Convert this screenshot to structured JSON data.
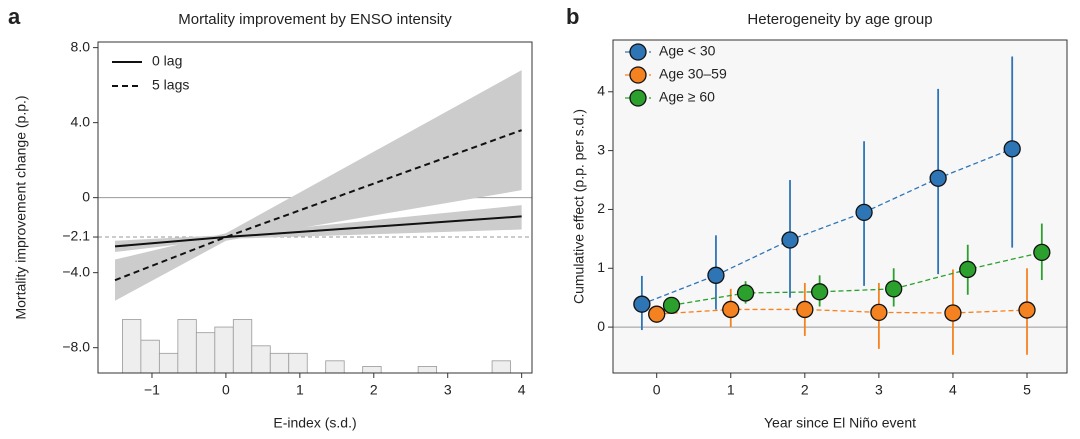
{
  "chart_data": [
    {
      "type": "line",
      "panel": "a",
      "title": "Mortality improvement by ENSO intensity",
      "x_label": "E-index (s.d.)",
      "y_label": "Mortality improvement change (p.p.)",
      "xlim": [
        -1.73,
        4.14
      ],
      "ylim": [
        -9.35,
        8.3
      ],
      "xticks": [
        {
          "value": -1,
          "label": "−1"
        },
        0,
        1,
        2,
        3,
        4
      ],
      "yticks": [
        {
          "value": 8,
          "label": "8.0"
        },
        {
          "value": 4,
          "label": "4.0"
        },
        0,
        {
          "value": -2.1,
          "label": "−2.1"
        },
        {
          "value": -4,
          "label": "−4.0"
        },
        {
          "value": -8,
          "label": "−8.0"
        }
      ],
      "hlines": [
        {
          "value": 0,
          "linestyle": "solid"
        },
        {
          "value": -2.1,
          "linestyle": "dashed"
        }
      ],
      "x": [
        -1.5,
        0,
        4
      ],
      "series": [
        {
          "name": "0 lag",
          "color": "#111111",
          "linestyle": "solid",
          "values": [
            -2.6,
            -2.1,
            -1.0
          ],
          "lower": [
            -2.9,
            -2.2,
            -1.7
          ],
          "upper": [
            -2.3,
            -2.0,
            -0.4
          ]
        },
        {
          "name": "5 lags",
          "color": "#111111",
          "linestyle": "dashed",
          "values": [
            -4.4,
            -2.1,
            3.6
          ],
          "lower": [
            -5.5,
            -2.3,
            0.4
          ],
          "upper": [
            -3.3,
            -1.9,
            6.8
          ]
        }
      ],
      "band_color": "#cccccc",
      "histogram": {
        "color": "#eeeeee",
        "edge": "#999999",
        "bins": [
          -1.4,
          -1.15,
          -0.9,
          -0.65,
          -0.4,
          -0.15,
          0.1,
          0.35,
          0.6,
          0.85,
          1.1,
          1.35,
          1.6,
          1.85,
          2.1,
          2.35,
          2.6,
          2.85,
          3.1,
          3.35,
          3.6,
          3.85
        ],
        "values": [
          -6.5,
          -7.6,
          -8.3,
          -6.5,
          -7.2,
          -6.9,
          -6.5,
          -7.9,
          -8.3,
          -8.3,
          null,
          -8.7,
          null,
          -9.0,
          null,
          null,
          -9.0,
          null,
          null,
          null,
          -8.7
        ]
      },
      "legend": "upper left",
      "background": "#ffffff"
    },
    {
      "type": "scatter",
      "panel": "b",
      "title": "Heterogeneity by age group",
      "x_label": "Year since El Niño event",
      "y_label": "Cumulative effect (p.p. per s.d.)",
      "xlim": [
        -0.59,
        5.54
      ],
      "ylim": [
        -0.78,
        4.88
      ],
      "xticks": [
        0,
        1,
        2,
        3,
        4,
        5
      ],
      "yticks": [
        0,
        1,
        2,
        3,
        4
      ],
      "hlines": [
        {
          "value": 0,
          "linestyle": "solid"
        }
      ],
      "series": [
        {
          "name": "Age < 30",
          "color": "#2e75b6",
          "x": [
            -0.2,
            0.8,
            1.8,
            2.8,
            3.8,
            4.8
          ],
          "values": [
            0.39,
            0.88,
            1.48,
            1.95,
            2.53,
            3.03
          ],
          "lower": [
            -0.05,
            0.3,
            0.5,
            0.7,
            0.9,
            1.35
          ],
          "upper": [
            0.87,
            1.56,
            2.5,
            3.16,
            4.05,
            4.6
          ]
        },
        {
          "name": "Age 30–59",
          "color": "#f58220",
          "x": [
            0,
            1,
            2,
            3,
            4,
            5
          ],
          "values": [
            0.22,
            0.3,
            0.3,
            0.25,
            0.24,
            0.29
          ],
          "lower": [
            0.15,
            0.0,
            -0.15,
            -0.37,
            -0.47,
            -0.47
          ],
          "upper": [
            0.3,
            0.65,
            0.75,
            0.75,
            0.98,
            1.0
          ]
        },
        {
          "name": "Age ≥ 60",
          "color": "#2ca02c",
          "x": [
            0.2,
            1.2,
            2.2,
            3.2,
            4.2,
            5.2
          ],
          "values": [
            0.37,
            0.58,
            0.6,
            0.65,
            0.98,
            1.27
          ],
          "lower": [
            0.3,
            0.4,
            0.35,
            0.35,
            0.55,
            0.8
          ],
          "upper": [
            0.42,
            0.78,
            0.88,
            1.0,
            1.4,
            1.76
          ]
        }
      ],
      "legend": "upper left",
      "background": "#f7f7f7"
    }
  ]
}
